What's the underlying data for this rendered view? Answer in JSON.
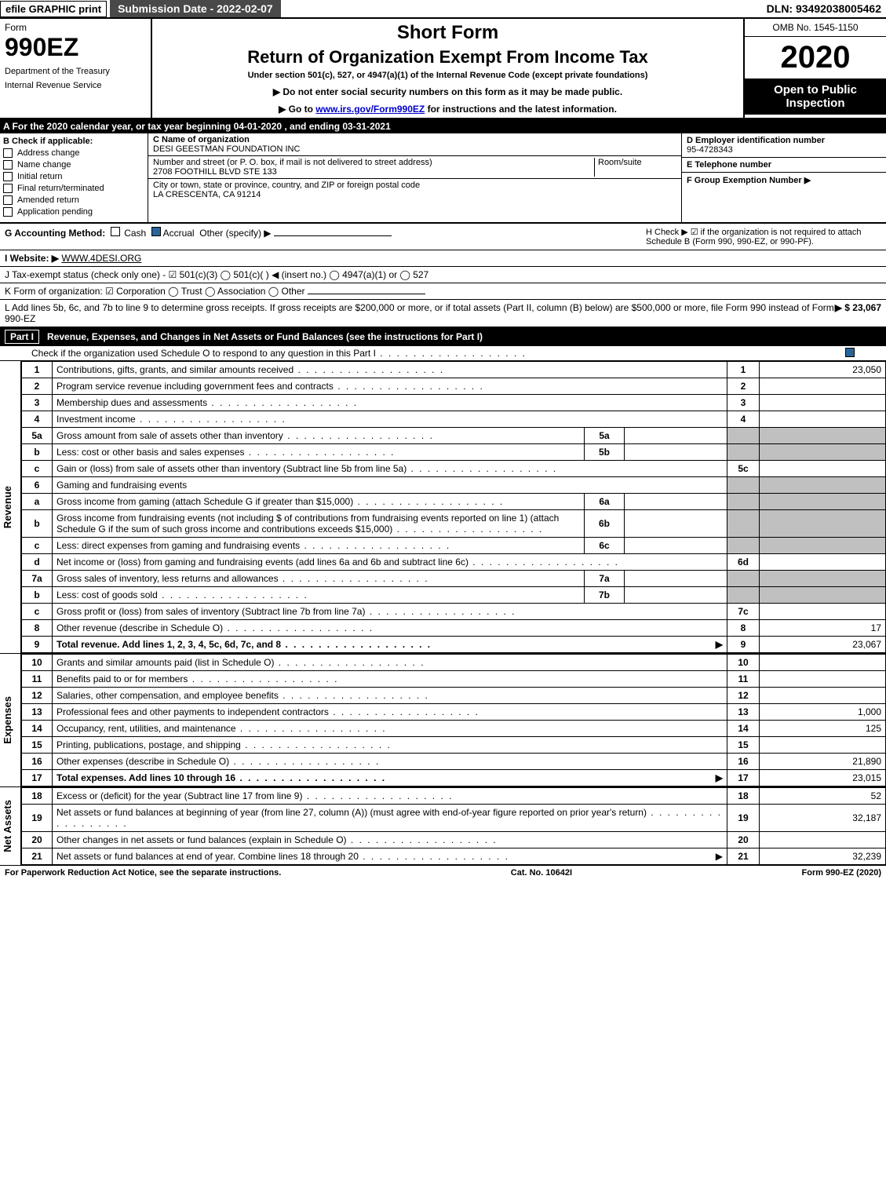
{
  "top": {
    "efile": "efile GRAPHIC print",
    "submission": "Submission Date - 2022-02-07",
    "dln": "DLN: 93492038005462"
  },
  "header": {
    "form_label": "Form",
    "form_number": "990EZ",
    "dept1": "Department of the Treasury",
    "dept2": "Internal Revenue Service",
    "short_form": "Short Form",
    "return_title": "Return of Organization Exempt From Income Tax",
    "under_section": "Under section 501(c), 527, or 4947(a)(1) of the Internal Revenue Code (except private foundations)",
    "no_ssn": "▶ Do not enter social security numbers on this form as it may be made public.",
    "goto_pre": "▶ Go to ",
    "goto_link": "www.irs.gov/Form990EZ",
    "goto_post": " for instructions and the latest information.",
    "omb": "OMB No. 1545-1150",
    "year": "2020",
    "open": "Open to Public Inspection"
  },
  "section_a": "A For the 2020 calendar year, or tax year beginning 04-01-2020 , and ending 03-31-2021",
  "checkB": {
    "title": "B  Check if applicable:",
    "items": [
      "Address change",
      "Name change",
      "Initial return",
      "Final return/terminated",
      "Amended return",
      "Application pending"
    ]
  },
  "entity": {
    "c_label": "C Name of organization",
    "c_name": "DESI GEESTMAN FOUNDATION INC",
    "addr_label": "Number and street (or P. O. box, if mail is not delivered to street address)",
    "room_label": "Room/suite",
    "addr": "2708 FOOTHILL BLVD STE 133",
    "city_label": "City or town, state or province, country, and ZIP or foreign postal code",
    "city": "LA CRESCENTA, CA  91214"
  },
  "ein_block": {
    "d_label": "D Employer identification number",
    "d_val": "95-4728343",
    "e_label": "E Telephone number",
    "e_val": "",
    "f_label": "F Group Exemption Number  ▶",
    "f_val": ""
  },
  "gh": {
    "g_label": "G Accounting Method:",
    "g_cash": "Cash",
    "g_accrual": "Accrual",
    "g_other": "Other (specify) ▶",
    "h_text": "H  Check ▶ ☑ if the organization is not required to attach Schedule B (Form 990, 990-EZ, or 990-PF)."
  },
  "website": {
    "label": "I Website: ▶",
    "val": "WWW.4DESI.ORG"
  },
  "taxexempt": "J Tax-exempt status (check only one) - ☑ 501(c)(3)  ◯ 501(c)(  ) ◀ (insert no.)  ◯ 4947(a)(1) or  ◯ 527",
  "formorg": "K Form of organization:  ☑ Corporation  ◯ Trust  ◯ Association  ◯ Other",
  "line_l": {
    "text": "L Add lines 5b, 6c, and 7b to line 9 to determine gross receipts. If gross receipts are $200,000 or more, or if total assets (Part II, column (B) below) are $500,000 or more, file Form 990 instead of Form 990-EZ",
    "arrow": "▶ $ 23,067"
  },
  "part1": {
    "label": "Part I",
    "title": "Revenue, Expenses, and Changes in Net Assets or Fund Balances (see the instructions for Part I)",
    "check": "Check if the organization used Schedule O to respond to any question in this Part I"
  },
  "revenue": {
    "side": "Revenue",
    "rows": [
      {
        "n": "1",
        "d": "Contributions, gifts, grants, and similar amounts received",
        "r": "1",
        "a": "23,050"
      },
      {
        "n": "2",
        "d": "Program service revenue including government fees and contracts",
        "r": "2",
        "a": ""
      },
      {
        "n": "3",
        "d": "Membership dues and assessments",
        "r": "3",
        "a": ""
      },
      {
        "n": "4",
        "d": "Investment income",
        "r": "4",
        "a": ""
      },
      {
        "n": "5a",
        "d": "Gross amount from sale of assets other than inventory",
        "sub": "5a",
        "sv": ""
      },
      {
        "n": "b",
        "d": "Less: cost or other basis and sales expenses",
        "sub": "5b",
        "sv": ""
      },
      {
        "n": "c",
        "d": "Gain or (loss) from sale of assets other than inventory (Subtract line 5b from line 5a)",
        "r": "5c",
        "a": ""
      },
      {
        "n": "6",
        "d": "Gaming and fundraising events"
      },
      {
        "n": "a",
        "d": "Gross income from gaming (attach Schedule G if greater than $15,000)",
        "sub": "6a",
        "sv": ""
      },
      {
        "n": "b",
        "d": "Gross income from fundraising events (not including $            of contributions from fundraising events reported on line 1) (attach Schedule G if the sum of such gross income and contributions exceeds $15,000)",
        "sub": "6b",
        "sv": ""
      },
      {
        "n": "c",
        "d": "Less: direct expenses from gaming and fundraising events",
        "sub": "6c",
        "sv": ""
      },
      {
        "n": "d",
        "d": "Net income or (loss) from gaming and fundraising events (add lines 6a and 6b and subtract line 6c)",
        "r": "6d",
        "a": ""
      },
      {
        "n": "7a",
        "d": "Gross sales of inventory, less returns and allowances",
        "sub": "7a",
        "sv": ""
      },
      {
        "n": "b",
        "d": "Less: cost of goods sold",
        "sub": "7b",
        "sv": ""
      },
      {
        "n": "c",
        "d": "Gross profit or (loss) from sales of inventory (Subtract line 7b from line 7a)",
        "r": "7c",
        "a": ""
      },
      {
        "n": "8",
        "d": "Other revenue (describe in Schedule O)",
        "r": "8",
        "a": "17"
      },
      {
        "n": "9",
        "d": "Total revenue. Add lines 1, 2, 3, 4, 5c, 6d, 7c, and 8",
        "r": "9",
        "a": "23,067",
        "arrow": true,
        "bold": true
      }
    ]
  },
  "expenses": {
    "side": "Expenses",
    "rows": [
      {
        "n": "10",
        "d": "Grants and similar amounts paid (list in Schedule O)",
        "r": "10",
        "a": ""
      },
      {
        "n": "11",
        "d": "Benefits paid to or for members",
        "r": "11",
        "a": ""
      },
      {
        "n": "12",
        "d": "Salaries, other compensation, and employee benefits",
        "r": "12",
        "a": ""
      },
      {
        "n": "13",
        "d": "Professional fees and other payments to independent contractors",
        "r": "13",
        "a": "1,000"
      },
      {
        "n": "14",
        "d": "Occupancy, rent, utilities, and maintenance",
        "r": "14",
        "a": "125"
      },
      {
        "n": "15",
        "d": "Printing, publications, postage, and shipping",
        "r": "15",
        "a": ""
      },
      {
        "n": "16",
        "d": "Other expenses (describe in Schedule O)",
        "r": "16",
        "a": "21,890"
      },
      {
        "n": "17",
        "d": "Total expenses. Add lines 10 through 16",
        "r": "17",
        "a": "23,015",
        "arrow": true,
        "bold": true
      }
    ]
  },
  "netassets": {
    "side": "Net Assets",
    "rows": [
      {
        "n": "18",
        "d": "Excess or (deficit) for the year (Subtract line 17 from line 9)",
        "r": "18",
        "a": "52"
      },
      {
        "n": "19",
        "d": "Net assets or fund balances at beginning of year (from line 27, column (A)) (must agree with end-of-year figure reported on prior year's return)",
        "r": "19",
        "a": "32,187"
      },
      {
        "n": "20",
        "d": "Other changes in net assets or fund balances (explain in Schedule O)",
        "r": "20",
        "a": ""
      },
      {
        "n": "21",
        "d": "Net assets or fund balances at end of year. Combine lines 18 through 20",
        "r": "21",
        "a": "32,239",
        "arrow": true
      }
    ]
  },
  "footer": {
    "left": "For Paperwork Reduction Act Notice, see the separate instructions.",
    "center": "Cat. No. 10642I",
    "right": "Form 990-EZ (2020)"
  },
  "colors": {
    "black": "#000000",
    "white": "#ffffff",
    "darkgrey": "#494949",
    "cellgrey": "#c0c0c0",
    "link": "#0000cc",
    "check": "#2a6496"
  }
}
